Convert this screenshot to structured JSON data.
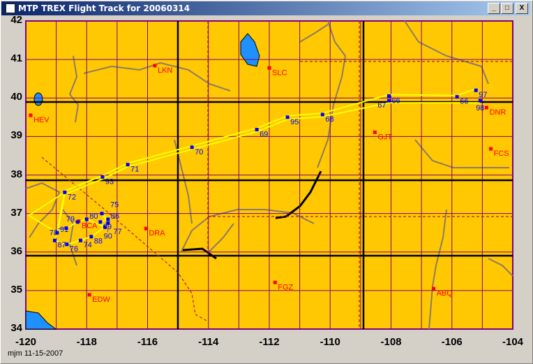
{
  "window": {
    "title": "MTP  TREX Flight Track for 20060314",
    "buttons": {
      "minimize": "_",
      "maximize": "□",
      "close": "X"
    }
  },
  "map": {
    "lon_range": [
      -120,
      -104
    ],
    "lat_range": [
      34,
      42
    ],
    "y_ticks": [
      "42",
      "41",
      "40",
      "39",
      "38",
      "37",
      "36",
      "35",
      "34"
    ],
    "x_ticks": [
      "-120",
      "-118",
      "-116",
      "-114",
      "-112",
      "-110",
      "-108",
      "-106",
      "-104"
    ],
    "colors": {
      "land": "#ffc800",
      "water": "#1e90ff",
      "grid": "#800080",
      "track": "#ffff00",
      "waypoint": "#0000ff",
      "station": "#ff0000",
      "river": "#8c7a6a"
    },
    "stations": [
      {
        "id": "LKN",
        "lon": -115.76,
        "lat": 40.84
      },
      {
        "id": "SLC",
        "lon": -112.0,
        "lat": 40.78
      },
      {
        "id": "HEV",
        "lon": -119.84,
        "lat": 39.55
      },
      {
        "id": "GJT",
        "lon": -108.53,
        "lat": 39.11
      },
      {
        "id": "DNR",
        "lon": -104.86,
        "lat": 39.75
      },
      {
        "id": "FCS",
        "lon": -104.72,
        "lat": 38.68
      },
      {
        "id": "DRA",
        "lon": -116.05,
        "lat": 36.61
      },
      {
        "id": "BCA",
        "lon": -118.26,
        "lat": 36.8
      },
      {
        "id": "FGZ",
        "lon": -111.81,
        "lat": 35.21
      },
      {
        "id": "ABQ",
        "lon": -106.6,
        "lat": 35.05
      },
      {
        "id": "EDW",
        "lon": -117.91,
        "lat": 34.89
      }
    ],
    "waypoints": [
      {
        "id": "87",
        "lon": -119.05,
        "lat": 36.3
      },
      {
        "id": "91",
        "lon": -118.97,
        "lat": 36.5
      },
      {
        "id": "78",
        "lon": -118.67,
        "lat": 36.62
      },
      {
        "id": "79",
        "lon": -118.3,
        "lat": 36.78
      },
      {
        "id": "76",
        "lon": -118.65,
        "lat": 36.2
      },
      {
        "id": "74",
        "lon": -118.2,
        "lat": 36.3
      },
      {
        "id": "88",
        "lon": -117.85,
        "lat": 36.4
      },
      {
        "id": "80",
        "lon": -118.0,
        "lat": 36.85
      },
      {
        "id": "89",
        "lon": -117.55,
        "lat": 36.78
      },
      {
        "id": "77",
        "lon": -117.4,
        "lat": 36.65
      },
      {
        "id": "86",
        "lon": -117.3,
        "lat": 36.85
      },
      {
        "id": "90",
        "lon": -117.3,
        "lat": 36.75
      },
      {
        "id": "75",
        "lon": -117.5,
        "lat": 37.0
      },
      {
        "id": "72",
        "lon": -118.72,
        "lat": 37.55
      },
      {
        "id": "93",
        "lon": -117.48,
        "lat": 37.95
      },
      {
        "id": "71",
        "lon": -116.65,
        "lat": 38.27
      },
      {
        "id": "70",
        "lon": -114.54,
        "lat": 38.72
      },
      {
        "id": "69",
        "lon": -112.41,
        "lat": 39.18
      },
      {
        "id": "95",
        "lon": -111.4,
        "lat": 39.5
      },
      {
        "id": "68",
        "lon": -110.25,
        "lat": 39.57
      },
      {
        "id": "66",
        "lon": -108.07,
        "lat": 40.05
      },
      {
        "id": "67",
        "lon": -108.07,
        "lat": 39.93
      },
      {
        "id": "66",
        "lon": -105.83,
        "lat": 40.03
      },
      {
        "id": "97",
        "lon": -105.21,
        "lat": 40.2
      },
      {
        "id": "98",
        "lon": -105.07,
        "lat": 39.93
      }
    ]
  },
  "footer": "mjm 11-15-2007"
}
